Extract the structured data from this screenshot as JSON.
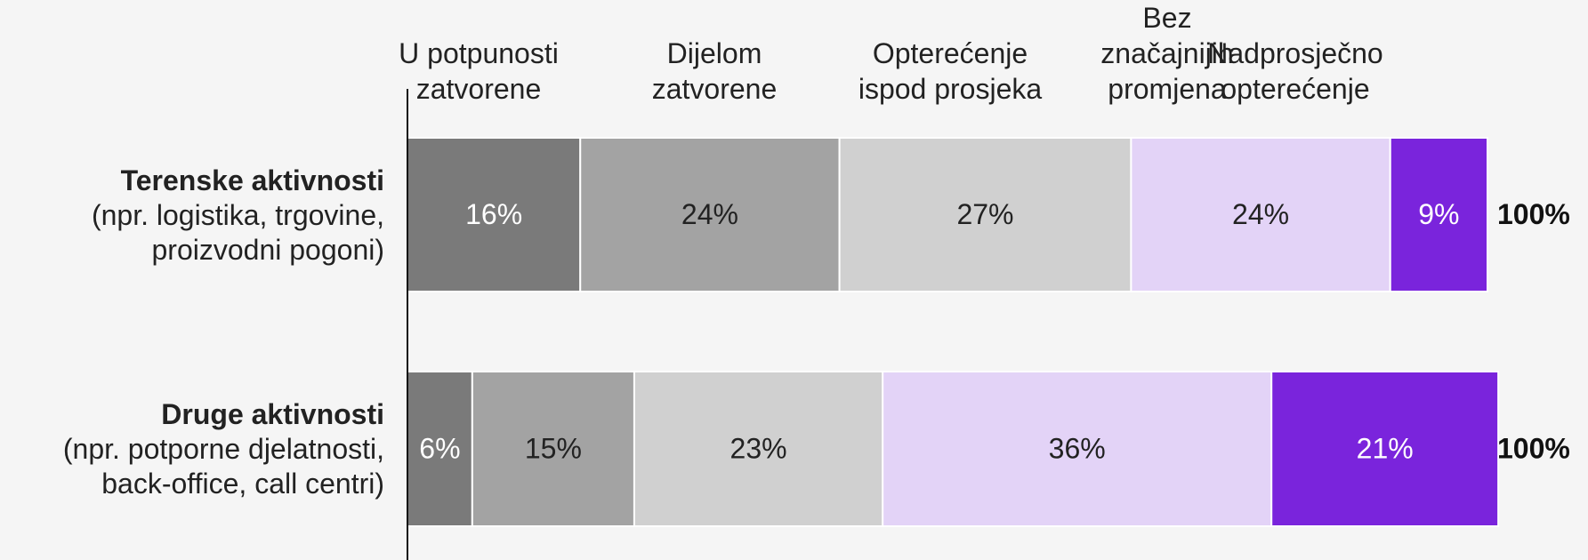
{
  "chart_data": {
    "type": "stacked-bar-horizontal",
    "categories": [
      "Terenske aktivnosti",
      "Druge aktivnosti"
    ],
    "category_notes": [
      "(npr. logistika, trgovine, proizvodni pogoni)",
      "(npr. potporne djelatnosti, back-office, call centri)"
    ],
    "series": [
      {
        "name": "U potpunosti zatvorene",
        "color": "#7a7a7a",
        "values": [
          16,
          6
        ],
        "value_labels": [
          "16%",
          "6%"
        ]
      },
      {
        "name": "Dijelom zatvorene",
        "color": "#a3a3a3",
        "values": [
          24,
          15
        ],
        "value_labels": [
          "24%",
          "15%"
        ]
      },
      {
        "name": "Opterećenje ispod prosjeka",
        "color": "#d0d0d0",
        "values": [
          27,
          23
        ],
        "value_labels": [
          "27%",
          "23%"
        ]
      },
      {
        "name": "Bez značajnijih promjena",
        "color": "#e3d3f7",
        "values": [
          24,
          36
        ],
        "value_labels": [
          "24%",
          "36%"
        ]
      },
      {
        "name": "Nadprosječno opterećenje",
        "color": "#7a24dc",
        "values": [
          9,
          21
        ],
        "value_labels": [
          "9%",
          "21%"
        ]
      }
    ],
    "totals": [
      100,
      100
    ],
    "total_labels": [
      "100%",
      "100%"
    ],
    "xlim": [
      0,
      100
    ]
  }
}
